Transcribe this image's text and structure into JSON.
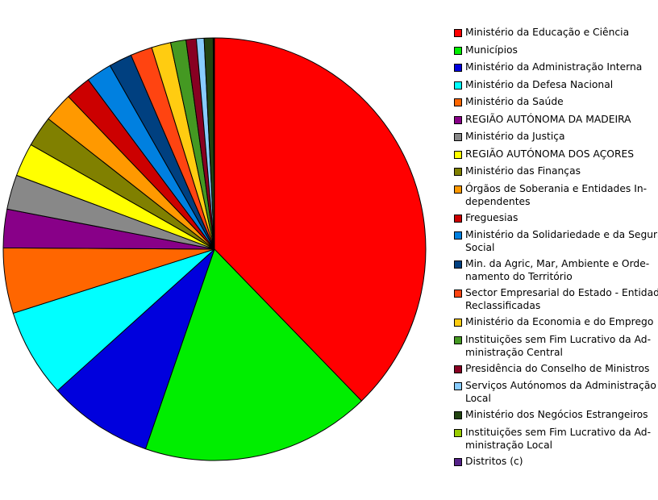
{
  "chart_data": {
    "type": "pie",
    "title": "",
    "legend_position": "right",
    "slices": [
      {
        "label": "Ministério da Educação e Ciência",
        "value": 38.5,
        "color": "#ff0000"
      },
      {
        "label": "Municípios",
        "value": 17.9,
        "color": "#00ee00"
      },
      {
        "label": "Ministério da Administração Interna",
        "value": 8.2,
        "color": "#0000dd"
      },
      {
        "label": "Ministério da Defesa Nacional",
        "value": 6.9,
        "color": "#00ffff"
      },
      {
        "label": "Ministério da Saúde",
        "value": 5.1,
        "color": "#ff6600"
      },
      {
        "label": "REGIÃO AUTÓNOMA DA MADEIRA",
        "value": 3.0,
        "color": "#880088"
      },
      {
        "label": "Ministério da Justiça",
        "value": 2.7,
        "color": "#888888"
      },
      {
        "label": "REGIÃO AUTÓNOMA DOS AÇORES",
        "value": 2.6,
        "color": "#ffff00"
      },
      {
        "label": "Ministério das Finanças",
        "value": 2.4,
        "color": "#808000"
      },
      {
        "label": "Órgãos de Soberania e Entidades In-\ndependentes",
        "value": 2.3,
        "color": "#ff9900"
      },
      {
        "label": "Freguesias",
        "value": 2.0,
        "color": "#cc0000"
      },
      {
        "label": "Ministério da Solidariedade e da Segurança\nSocial",
        "value": 2.0,
        "color": "#0080e0"
      },
      {
        "label": "Min. da Agric, Mar, Ambiente e Orde-\nnamento do Território",
        "value": 1.8,
        "color": "#004080"
      },
      {
        "label": "Sector Empresarial do Estado - Entidades\nReclassificadas",
        "value": 1.7,
        "color": "#ff4411"
      },
      {
        "label": "Ministério da Economia e do Emprego",
        "value": 1.5,
        "color": "#ffcc11"
      },
      {
        "label": "Instituições sem Fim Lucrativo da Ad-\nministração Central",
        "value": 1.2,
        "color": "#449922"
      },
      {
        "label": "Presidência do Conselho de Ministros",
        "value": 0.8,
        "color": "#880022"
      },
      {
        "label": "Serviços Autónomos da Administração\nLocal",
        "value": 0.6,
        "color": "#88ccff"
      },
      {
        "label": "Ministério dos Negócios Estrangeiros",
        "value": 0.7,
        "color": "#224411"
      },
      {
        "label": "Instituições sem Fim Lucrativo da Ad-\nministração Local",
        "value": 0.05,
        "color": "#99cc00"
      },
      {
        "label": "Distritos (c)",
        "value": 0.05,
        "color": "#552288"
      }
    ]
  }
}
